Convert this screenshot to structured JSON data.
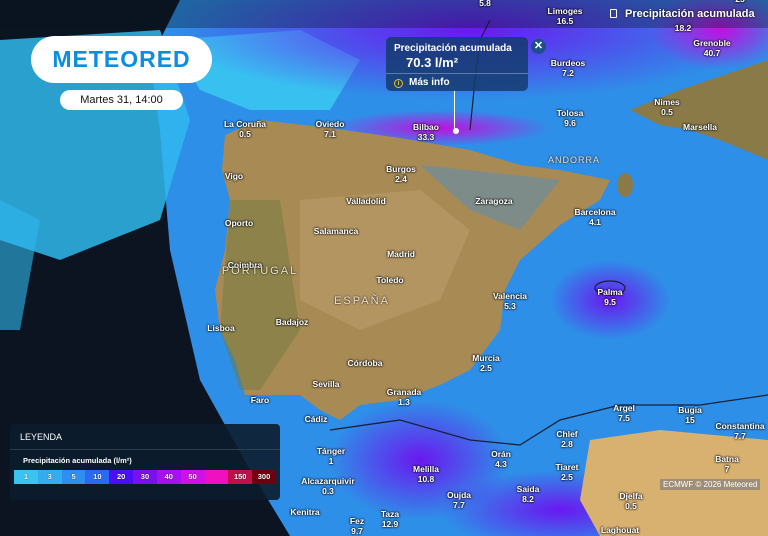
{
  "header": {
    "logo": "METEORED",
    "date": "Martes 31, 14:00",
    "layer_title": "Precipitación acumulada",
    "layer_icon": "rain-gauge-icon"
  },
  "popup": {
    "title": "Precipitación acumulada",
    "value": "70.3 l/m²",
    "more_info": "Más info",
    "close_icon": "close-icon"
  },
  "legend": {
    "heading": "LEYENDA",
    "title": "Precipitación acumulada (l/m²)",
    "stops": [
      {
        "label": "1",
        "color": "#3cc4f0"
      },
      {
        "label": "3",
        "color": "#36acee"
      },
      {
        "label": "5",
        "color": "#2f8ff0"
      },
      {
        "label": "10",
        "color": "#2a6af2"
      },
      {
        "label": "20",
        "color": "#4a10f0"
      },
      {
        "label": "30",
        "color": "#7a10f0"
      },
      {
        "label": "40",
        "color": "#a810f0"
      },
      {
        "label": "50",
        "color": "#d010e8"
      },
      {
        "label": "",
        "color": "#f010c0"
      },
      {
        "label": "150",
        "color": "#c0104a"
      },
      {
        "label": "300",
        "color": "#700010"
      }
    ]
  },
  "countries": [
    "PORTUGAL",
    "ESPAÑA",
    "ANDORRA"
  ],
  "cities": [
    {
      "name": "",
      "value": "5.8"
    },
    {
      "name": "Limoges",
      "value": "16.5"
    },
    {
      "name": "",
      "value": "18.2"
    },
    {
      "name": "",
      "value": "25"
    },
    {
      "name": "Grenoble",
      "value": "40.7"
    },
    {
      "name": "Burdeos",
      "value": "7.2"
    },
    {
      "name": "Nimes",
      "value": "0.5"
    },
    {
      "name": "Marsella",
      "value": ""
    },
    {
      "name": "La Coruña",
      "value": "0.5"
    },
    {
      "name": "Oviedo",
      "value": "7.1"
    },
    {
      "name": "Bilbao",
      "value": "33.3"
    },
    {
      "name": "Tolosa",
      "value": "9.6"
    },
    {
      "name": "Burgos",
      "value": "2.4"
    },
    {
      "name": "Vigo",
      "value": ""
    },
    {
      "name": "Valladolid",
      "value": ""
    },
    {
      "name": "Zaragoza",
      "value": ""
    },
    {
      "name": "Barcelona",
      "value": "4.1"
    },
    {
      "name": "Oporto",
      "value": ""
    },
    {
      "name": "Salamanca",
      "value": ""
    },
    {
      "name": "Madrid",
      "value": ""
    },
    {
      "name": "Coimbra",
      "value": ""
    },
    {
      "name": "Toledo",
      "value": ""
    },
    {
      "name": "Valencia",
      "value": "5.3"
    },
    {
      "name": "Palma",
      "value": "9.5"
    },
    {
      "name": "Lisboa",
      "value": ""
    },
    {
      "name": "Badajoz",
      "value": ""
    },
    {
      "name": "Córdoba",
      "value": ""
    },
    {
      "name": "Murcia",
      "value": "2.5"
    },
    {
      "name": "Sevilla",
      "value": ""
    },
    {
      "name": "Granada",
      "value": "1.3"
    },
    {
      "name": "Faro",
      "value": ""
    },
    {
      "name": "Argel",
      "value": "7.5"
    },
    {
      "name": "Bugia",
      "value": "15"
    },
    {
      "name": "Constantina",
      "value": "7.7"
    },
    {
      "name": "Cádiz",
      "value": ""
    },
    {
      "name": "Chlef",
      "value": "2.8"
    },
    {
      "name": "Tánger",
      "value": "1"
    },
    {
      "name": "Orán",
      "value": "4.3"
    },
    {
      "name": "Tiaret",
      "value": "2.5"
    },
    {
      "name": "Batna",
      "value": "7"
    },
    {
      "name": "Melilla",
      "value": "10.8"
    },
    {
      "name": "Alcazarquivir",
      "value": "0.3"
    },
    {
      "name": "Saida",
      "value": "8.2"
    },
    {
      "name": "Oujda",
      "value": "7.7"
    },
    {
      "name": "Djelfa",
      "value": "0.5"
    },
    {
      "name": "Kenitra",
      "value": ""
    },
    {
      "name": "Taza",
      "value": "12.9"
    },
    {
      "name": "Fez",
      "value": "9.7"
    },
    {
      "name": "Laghouat",
      "value": ""
    }
  ],
  "credit": "ECMWF © 2026 Meteored"
}
